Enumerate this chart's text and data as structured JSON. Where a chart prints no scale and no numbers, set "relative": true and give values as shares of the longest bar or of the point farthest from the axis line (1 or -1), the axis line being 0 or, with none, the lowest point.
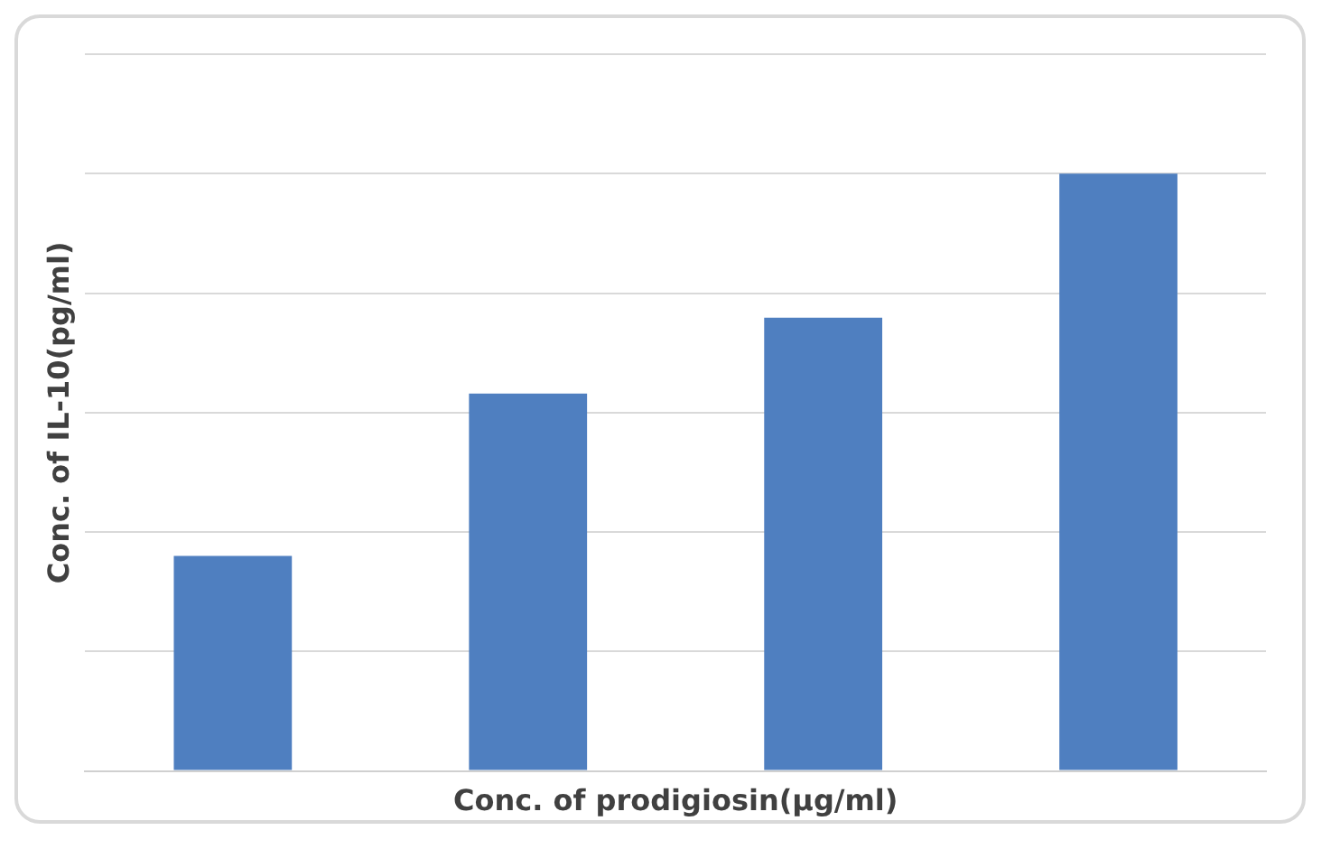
{
  "chart_data": {
    "type": "bar",
    "relative": true,
    "xlabel": "Conc. of prodigiosin(µg/ml)",
    "ylabel": "Conc. of IL-10(pg/ml)",
    "categories": [
      null,
      null,
      null,
      null
    ],
    "values": [
      0.36,
      0.632,
      0.759,
      1
    ],
    "color": "#4f7fc0",
    "grid": "y"
  }
}
